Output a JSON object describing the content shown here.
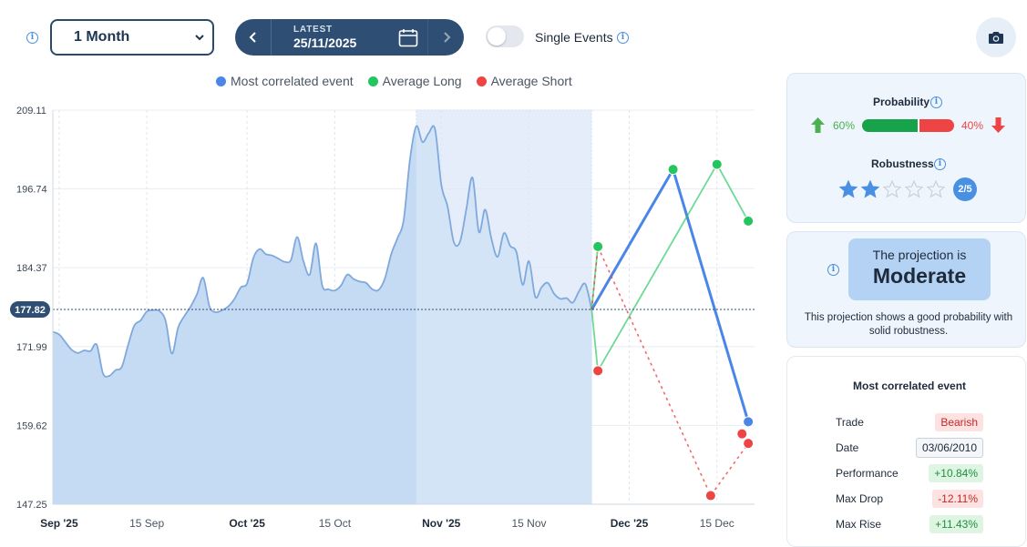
{
  "toolbar": {
    "period": "1 Month",
    "latest_label": "LATEST",
    "latest_date": "25/11/2025",
    "single_events_label": "Single Events",
    "single_events_on": false
  },
  "legend": [
    {
      "label": "Most correlated event",
      "color": "#4a86e8"
    },
    {
      "label": "Average Long",
      "color": "#22c55e"
    },
    {
      "label": "Average Short",
      "color": "#ef4444"
    }
  ],
  "probability": {
    "title": "Probability",
    "up_pct": "60%",
    "down_pct": "40%",
    "up_fraction": 0.6,
    "up_color": "#16a34a",
    "down_color": "#ef4444"
  },
  "robustness": {
    "title": "Robustness",
    "stars_filled": 2,
    "stars_total": 5,
    "badge": "2/5"
  },
  "projection": {
    "line1": "The projection is",
    "line2": "Moderate",
    "description": "This projection shows a good probability with solid robustness."
  },
  "most_correlated": {
    "title": "Most correlated event",
    "rows": [
      {
        "label": "Trade",
        "value": "Bearish",
        "style": "bear"
      },
      {
        "label": "Date",
        "value": "03/06/2010",
        "style": "date"
      },
      {
        "label": "Performance",
        "value": "+10.84%",
        "style": "pos"
      },
      {
        "label": "Max Drop",
        "value": "-12.11%",
        "style": "neg"
      },
      {
        "label": "Max Rise",
        "value": "+11.43%",
        "style": "pos"
      }
    ]
  },
  "chart_data": {
    "type": "area",
    "x_axis": {
      "type": "date",
      "range": [
        "2025-08-31",
        "2025-12-21"
      ],
      "ticks": [
        {
          "date": "2025-09-01",
          "label": "Sep '25",
          "major": true
        },
        {
          "date": "2025-09-15",
          "label": "15 Sep",
          "major": false
        },
        {
          "date": "2025-10-01",
          "label": "Oct '25",
          "major": true
        },
        {
          "date": "2025-10-15",
          "label": "15 Oct",
          "major": false
        },
        {
          "date": "2025-11-01",
          "label": "Nov '25",
          "major": true
        },
        {
          "date": "2025-11-15",
          "label": "15 Nov",
          "major": false
        },
        {
          "date": "2025-12-01",
          "label": "Dec '25",
          "major": true
        },
        {
          "date": "2025-12-15",
          "label": "15 Dec",
          "major": false
        }
      ]
    },
    "y_axis": {
      "range": [
        147.25,
        209.11
      ],
      "ticks": [
        "147.25",
        "159.62",
        "171.99",
        "184.37",
        "196.74",
        "209.11"
      ]
    },
    "current_value": {
      "value": 177.82,
      "label": "177.82"
    },
    "highlight_range": [
      "2025-10-28",
      "2025-11-25"
    ],
    "price": {
      "name": "Price",
      "color": "#7fa9dc",
      "points": [
        [
          "2025-08-31",
          174.3
        ],
        [
          "2025-09-01",
          173.9
        ],
        [
          "2025-09-02",
          172.7
        ],
        [
          "2025-09-03",
          171.5
        ],
        [
          "2025-09-04",
          171.0
        ],
        [
          "2025-09-05",
          171.4
        ],
        [
          "2025-09-06",
          171.3
        ],
        [
          "2025-09-07",
          172.3
        ],
        [
          "2025-09-08",
          167.8
        ],
        [
          "2025-09-09",
          167.4
        ],
        [
          "2025-09-10",
          168.3
        ],
        [
          "2025-09-11",
          168.8
        ],
        [
          "2025-09-12",
          172.2
        ],
        [
          "2025-09-13",
          175.3
        ],
        [
          "2025-09-14",
          176.1
        ],
        [
          "2025-09-15",
          177.5
        ],
        [
          "2025-09-16",
          177.7
        ],
        [
          "2025-09-17",
          177.6
        ],
        [
          "2025-09-18",
          176.0
        ],
        [
          "2025-09-19",
          170.9
        ],
        [
          "2025-09-20",
          175.0
        ],
        [
          "2025-09-21",
          176.8
        ],
        [
          "2025-09-22",
          178.3
        ],
        [
          "2025-09-23",
          180.2
        ],
        [
          "2025-09-24",
          182.8
        ],
        [
          "2025-09-25",
          178.3
        ],
        [
          "2025-09-26",
          177.4
        ],
        [
          "2025-09-27",
          177.7
        ],
        [
          "2025-09-28",
          178.3
        ],
        [
          "2025-09-29",
          179.5
        ],
        [
          "2025-09-30",
          181.3
        ],
        [
          "2025-10-01",
          181.9
        ],
        [
          "2025-10-02",
          185.9
        ],
        [
          "2025-10-03",
          187.3
        ],
        [
          "2025-10-04",
          186.5
        ],
        [
          "2025-10-05",
          186.3
        ],
        [
          "2025-10-06",
          185.8
        ],
        [
          "2025-10-07",
          185.3
        ],
        [
          "2025-10-08",
          185.6
        ],
        [
          "2025-10-09",
          189.2
        ],
        [
          "2025-10-10",
          185.4
        ],
        [
          "2025-10-11",
          183.3
        ],
        [
          "2025-10-12",
          188.2
        ],
        [
          "2025-10-13",
          181.6
        ],
        [
          "2025-10-14",
          181.0
        ],
        [
          "2025-10-15",
          180.8
        ],
        [
          "2025-10-16",
          181.6
        ],
        [
          "2025-10-17",
          183.3
        ],
        [
          "2025-10-18",
          182.6
        ],
        [
          "2025-10-19",
          182.2
        ],
        [
          "2025-10-20",
          182.0
        ],
        [
          "2025-10-21",
          181.0
        ],
        [
          "2025-10-22",
          180.9
        ],
        [
          "2025-10-23",
          182.7
        ],
        [
          "2025-10-24",
          186.5
        ],
        [
          "2025-10-25",
          189.0
        ],
        [
          "2025-10-26",
          191.9
        ],
        [
          "2025-10-27",
          201.4
        ],
        [
          "2025-10-28",
          206.6
        ],
        [
          "2025-10-29",
          204.1
        ],
        [
          "2025-10-30",
          205.5
        ],
        [
          "2025-10-31",
          206.1
        ],
        [
          "2025-11-01",
          197.4
        ],
        [
          "2025-11-02",
          194.0
        ],
        [
          "2025-11-03",
          188.4
        ],
        [
          "2025-11-04",
          188.5
        ],
        [
          "2025-11-05",
          193.6
        ],
        [
          "2025-11-06",
          198.5
        ],
        [
          "2025-11-07",
          190.0
        ],
        [
          "2025-11-08",
          193.5
        ],
        [
          "2025-11-09",
          188.9
        ],
        [
          "2025-11-10",
          186.1
        ],
        [
          "2025-11-11",
          189.8
        ],
        [
          "2025-11-12",
          187.8
        ],
        [
          "2025-11-13",
          186.8
        ],
        [
          "2025-11-14",
          181.7
        ],
        [
          "2025-11-15",
          185.4
        ],
        [
          "2025-11-16",
          179.8
        ],
        [
          "2025-11-17",
          181.3
        ],
        [
          "2025-11-18",
          182.0
        ],
        [
          "2025-11-19",
          180.3
        ],
        [
          "2025-11-20",
          179.5
        ],
        [
          "2025-11-21",
          179.6
        ],
        [
          "2025-11-22",
          178.9
        ],
        [
          "2025-11-23",
          180.7
        ],
        [
          "2025-11-24",
          181.8
        ],
        [
          "2025-11-25",
          177.8
        ]
      ]
    },
    "projections": [
      {
        "name": "Most correlated event",
        "color": "#4a86e8",
        "style": "solid",
        "points": [
          [
            "2025-11-25",
            177.8
          ],
          [
            "2025-12-08",
            199.8
          ],
          [
            "2025-12-20",
            160.2
          ]
        ]
      },
      {
        "name": "Average Long",
        "color": "#22c55e",
        "style": "solid",
        "points": [
          [
            "2025-11-25",
            177.8
          ],
          [
            "2025-11-26",
            168.2
          ],
          [
            "2025-12-15",
            200.6
          ],
          [
            "2025-12-20",
            191.7
          ]
        ]
      },
      {
        "name": "Average Long",
        "color": "#22c55e",
        "style": "solid",
        "points": [
          [
            "2025-11-25",
            177.8
          ],
          [
            "2025-11-26",
            187.7
          ]
        ]
      },
      {
        "name": "Average Short",
        "color": "#ef4444",
        "style": "dashed",
        "points": [
          [
            "2025-11-25",
            177.8
          ],
          [
            "2025-11-26",
            187.7
          ],
          [
            "2025-12-14",
            148.6
          ],
          [
            "2025-12-20",
            156.8
          ]
        ]
      }
    ],
    "markers": [
      {
        "date": "2025-11-26",
        "value": 187.7,
        "color": "#22c55e"
      },
      {
        "date": "2025-11-26",
        "value": 168.2,
        "color": "#ef4444"
      },
      {
        "date": "2025-12-08",
        "value": 199.8,
        "color": "#22c55e"
      },
      {
        "date": "2025-12-15",
        "value": 200.6,
        "color": "#22c55e"
      },
      {
        "date": "2025-12-20",
        "value": 191.7,
        "color": "#22c55e"
      },
      {
        "date": "2025-12-14",
        "value": 148.6,
        "color": "#ef4444"
      },
      {
        "date": "2025-12-20",
        "value": 160.2,
        "color": "#4a86e8"
      },
      {
        "date": "2025-12-19",
        "value": 158.3,
        "color": "#ef4444"
      },
      {
        "date": "2025-12-20",
        "value": 156.8,
        "color": "#ef4444"
      }
    ],
    "grid": true
  }
}
